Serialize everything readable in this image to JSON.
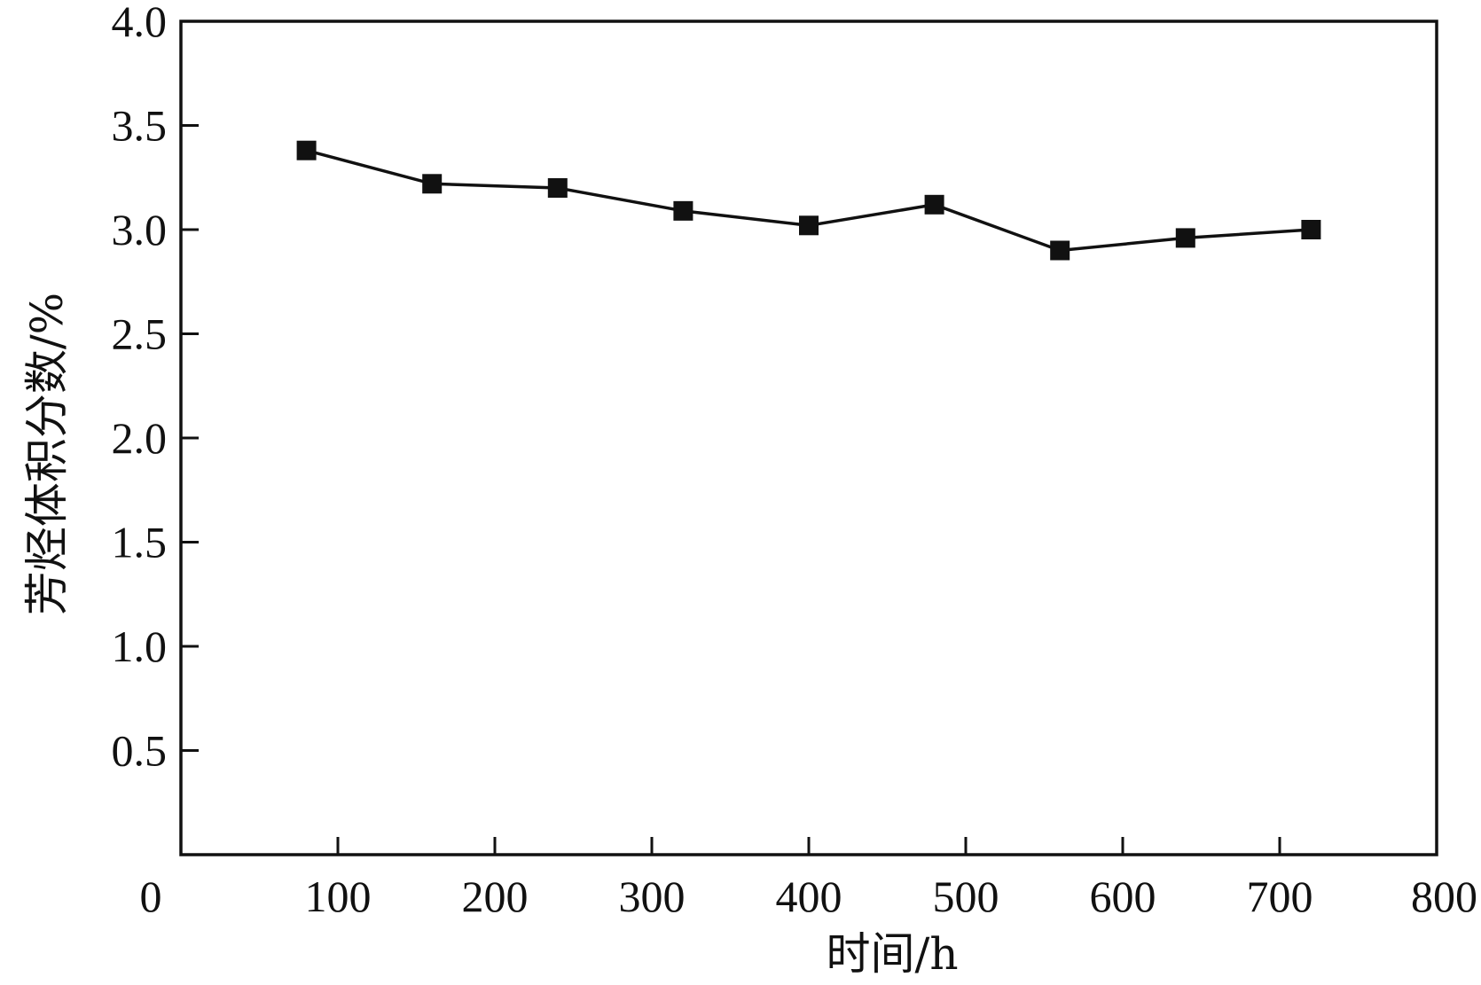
{
  "chart_data": {
    "type": "line",
    "title": "",
    "xlabel": "时间/h",
    "ylabel": "芳烃体积分数/%",
    "xlim": [
      0,
      800
    ],
    "ylim": [
      0,
      4.0
    ],
    "x_ticks": [
      0,
      100,
      200,
      300,
      400,
      500,
      600,
      700,
      800
    ],
    "x_tick_labels": [
      "0",
      "100",
      "200",
      "300",
      "400",
      "500",
      "600",
      "700",
      "800"
    ],
    "y_ticks": [
      0.5,
      1.0,
      1.5,
      2.0,
      2.5,
      3.0,
      3.5,
      4.0
    ],
    "y_tick_labels": [
      "0.5",
      "1.0",
      "1.5",
      "2.0",
      "2.5",
      "3.0",
      "3.5",
      "4.0"
    ],
    "grid": false,
    "legend": "none",
    "series": [
      {
        "marker": "square",
        "color": "#111111",
        "x": [
          80,
          160,
          240,
          320,
          400,
          480,
          560,
          640,
          720
        ],
        "y": [
          3.38,
          3.22,
          3.2,
          3.09,
          3.02,
          3.12,
          2.9,
          2.96,
          3.0
        ]
      }
    ]
  }
}
